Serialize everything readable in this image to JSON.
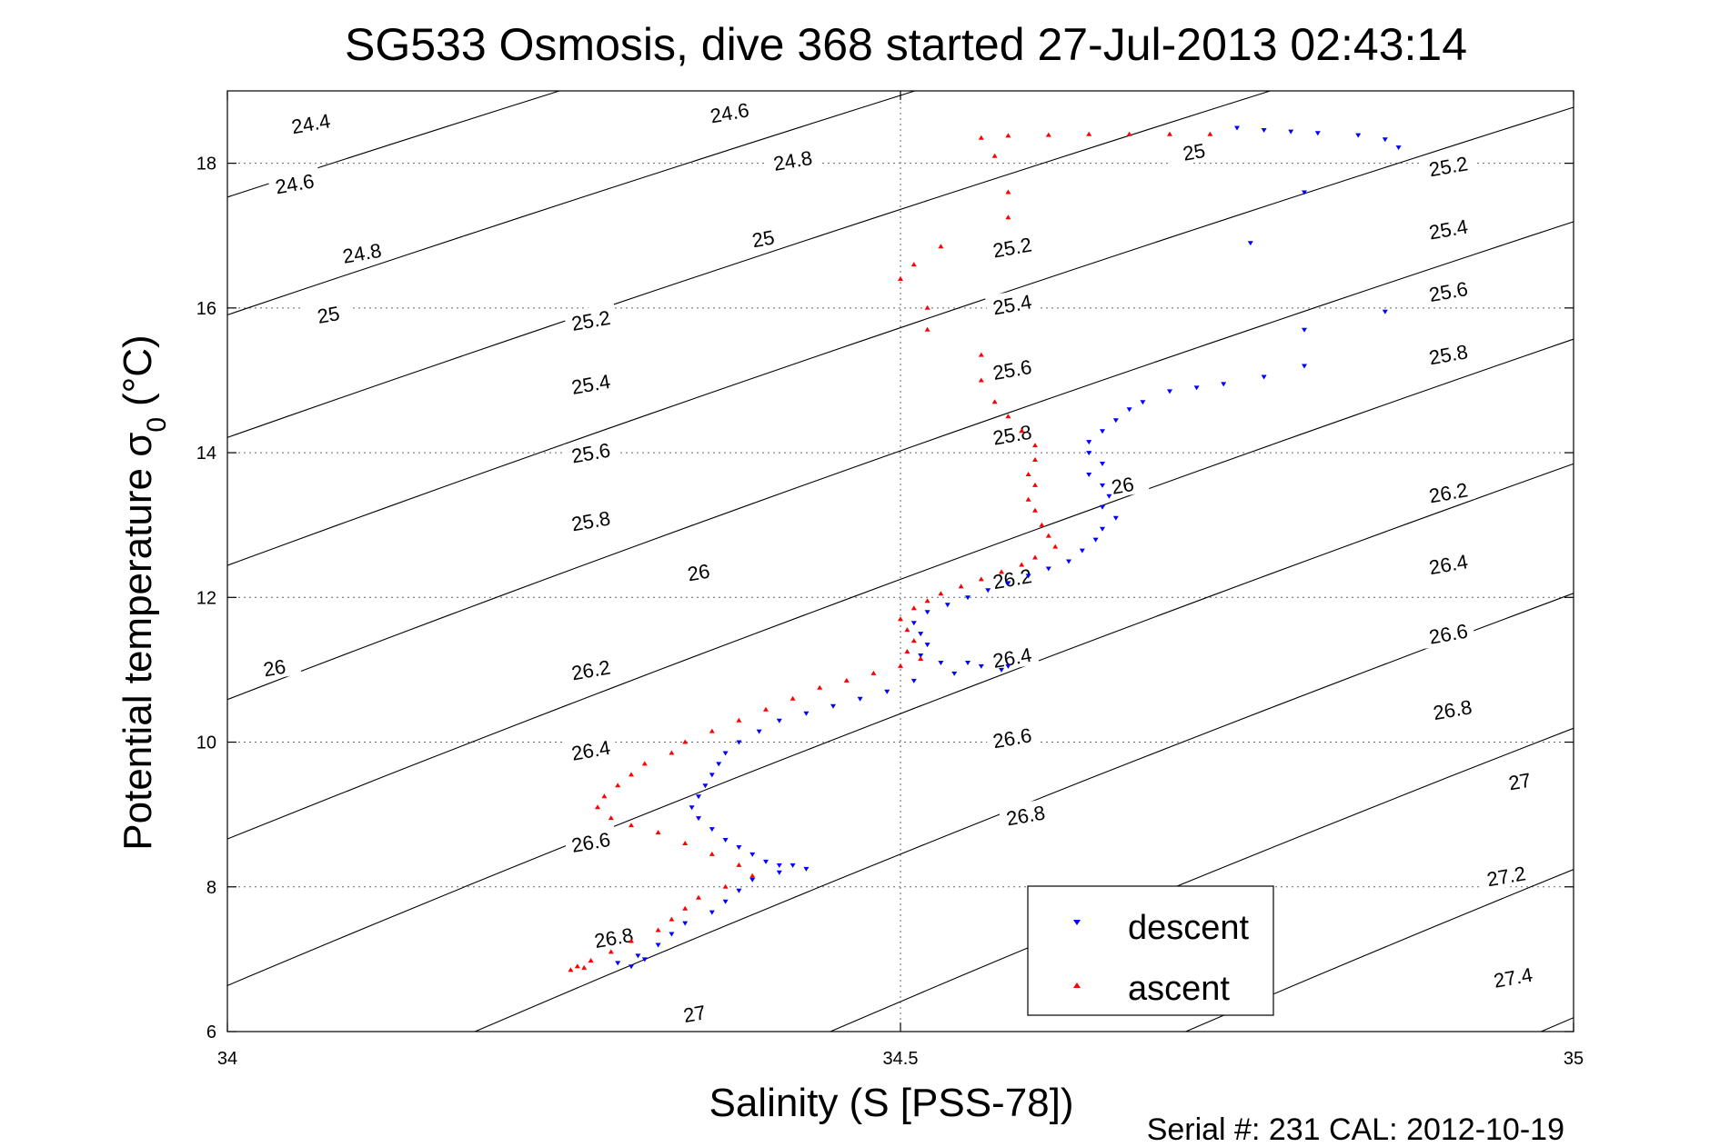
{
  "chart_data": {
    "type": "scatter",
    "title": "SG533 Osmosis, dive 368 started 27-Jul-2013 02:43:14",
    "xlabel": "Salinity (S [PSS-78])",
    "ylabel_main": "Potential temperature σ",
    "ylabel_sub": "0",
    "ylabel_unit": "(°C)",
    "xlim": [
      34,
      35
    ],
    "ylim": [
      6,
      19
    ],
    "xticks": [
      34,
      34.5,
      35
    ],
    "xtick_labels": [
      "34",
      "34.5",
      "35"
    ],
    "yticks": [
      6,
      8,
      10,
      12,
      14,
      16,
      18
    ],
    "ytick_labels": [
      "6",
      "8",
      "10",
      "12",
      "14",
      "16",
      "18"
    ],
    "grid": "dotted at x=34.5 and at y ticks",
    "legend_position": "bottom-center",
    "footer": "Serial #: 231  CAL: 2012-10-19",
    "colors": {
      "descent": "#0000ff",
      "ascent": "#ff0000",
      "contour": "#000000"
    },
    "sigma_contours": {
      "levels": [
        24.4,
        24.6,
        24.8,
        25,
        25.2,
        25.4,
        25.6,
        25.8,
        26,
        26.2,
        26.4,
        26.6,
        26.8,
        27,
        27.2,
        27.4
      ],
      "labels": [
        {
          "text": "24.4",
          "s": 34.062,
          "t": 18.55
        },
        {
          "text": "24.6",
          "s": 34.373,
          "t": 18.7
        },
        {
          "text": "24.6",
          "s": 34.05,
          "t": 17.72
        },
        {
          "text": "24.8",
          "s": 34.42,
          "t": 18.04
        },
        {
          "text": "24.8",
          "s": 34.1,
          "t": 16.76
        },
        {
          "text": "25",
          "s": 34.398,
          "t": 16.96
        },
        {
          "text": "25",
          "s": 34.075,
          "t": 15.91
        },
        {
          "text": "25",
          "s": 34.718,
          "t": 18.16
        },
        {
          "text": "25.2",
          "s": 34.27,
          "t": 15.83
        },
        {
          "text": "25.2",
          "s": 34.583,
          "t": 16.84
        },
        {
          "text": "25.2",
          "s": 34.907,
          "t": 17.96
        },
        {
          "text": "25.4",
          "s": 34.27,
          "t": 14.95
        },
        {
          "text": "25.4",
          "s": 34.583,
          "t": 16.05
        },
        {
          "text": "25.4",
          "s": 34.907,
          "t": 17.09
        },
        {
          "text": "25.6",
          "s": 34.27,
          "t": 14.0
        },
        {
          "text": "25.6",
          "s": 34.583,
          "t": 15.15
        },
        {
          "text": "25.6",
          "s": 34.907,
          "t": 16.23
        },
        {
          "text": "25.8",
          "s": 34.27,
          "t": 13.06
        },
        {
          "text": "25.8",
          "s": 34.583,
          "t": 14.25
        },
        {
          "text": "25.8",
          "s": 34.907,
          "t": 15.36
        },
        {
          "text": "26",
          "s": 34.035,
          "t": 11.03
        },
        {
          "text": "26",
          "s": 34.35,
          "t": 12.35
        },
        {
          "text": "26",
          "s": 34.665,
          "t": 13.55
        },
        {
          "text": "26.2",
          "s": 34.27,
          "t": 11.0
        },
        {
          "text": "26.2",
          "s": 34.583,
          "t": 12.26
        },
        {
          "text": "26.2",
          "s": 34.907,
          "t": 13.45
        },
        {
          "text": "26.4",
          "s": 34.27,
          "t": 9.89
        },
        {
          "text": "26.4",
          "s": 34.583,
          "t": 11.17
        },
        {
          "text": "26.4",
          "s": 34.907,
          "t": 12.46
        },
        {
          "text": "26.6",
          "s": 34.27,
          "t": 8.62
        },
        {
          "text": "26.6",
          "s": 34.583,
          "t": 10.06
        },
        {
          "text": "26.6",
          "s": 34.907,
          "t": 11.5
        },
        {
          "text": "26.8",
          "s": 34.287,
          "t": 7.3
        },
        {
          "text": "26.8",
          "s": 34.593,
          "t": 8.99
        },
        {
          "text": "26.8",
          "s": 34.91,
          "t": 10.45
        },
        {
          "text": "27",
          "s": 34.347,
          "t": 6.25
        },
        {
          "text": "27",
          "s": 34.96,
          "t": 9.46
        },
        {
          "text": "27.2",
          "s": 34.95,
          "t": 8.15
        },
        {
          "text": "27.4",
          "s": 34.955,
          "t": 6.75
        }
      ]
    },
    "series": [
      {
        "name": "descent",
        "marker": "triangle-down",
        "points": [
          [
            34.75,
            18.49
          ],
          [
            34.77,
            18.46
          ],
          [
            34.79,
            18.44
          ],
          [
            34.81,
            18.42
          ],
          [
            34.84,
            18.39
          ],
          [
            34.86,
            18.33
          ],
          [
            34.87,
            18.22
          ],
          [
            34.8,
            17.6
          ],
          [
            34.76,
            16.9
          ],
          [
            34.86,
            15.95
          ],
          [
            34.8,
            15.7
          ],
          [
            34.8,
            15.2
          ],
          [
            34.77,
            15.05
          ],
          [
            34.74,
            14.95
          ],
          [
            34.72,
            14.9
          ],
          [
            34.7,
            14.85
          ],
          [
            34.68,
            14.7
          ],
          [
            34.67,
            14.6
          ],
          [
            34.66,
            14.45
          ],
          [
            34.65,
            14.3
          ],
          [
            34.64,
            14.15
          ],
          [
            34.64,
            14.0
          ],
          [
            34.65,
            13.85
          ],
          [
            34.64,
            13.7
          ],
          [
            34.65,
            13.55
          ],
          [
            34.655,
            13.4
          ],
          [
            34.65,
            13.25
          ],
          [
            34.66,
            13.1
          ],
          [
            34.65,
            12.95
          ],
          [
            34.645,
            12.8
          ],
          [
            34.635,
            12.65
          ],
          [
            34.625,
            12.5
          ],
          [
            34.61,
            12.4
          ],
          [
            34.595,
            12.3
          ],
          [
            34.58,
            12.2
          ],
          [
            34.565,
            12.1
          ],
          [
            34.55,
            12.0
          ],
          [
            34.535,
            11.9
          ],
          [
            34.52,
            11.8
          ],
          [
            34.51,
            11.65
          ],
          [
            34.515,
            11.5
          ],
          [
            34.52,
            11.35
          ],
          [
            34.515,
            11.2
          ],
          [
            34.53,
            11.1
          ],
          [
            34.55,
            11.1
          ],
          [
            34.56,
            11.05
          ],
          [
            34.575,
            11.0
          ],
          [
            34.58,
            11.05
          ],
          [
            34.54,
            10.95
          ],
          [
            34.51,
            10.85
          ],
          [
            34.49,
            10.7
          ],
          [
            34.47,
            10.6
          ],
          [
            34.45,
            10.5
          ],
          [
            34.43,
            10.4
          ],
          [
            34.41,
            10.3
          ],
          [
            34.395,
            10.15
          ],
          [
            34.38,
            10.0
          ],
          [
            34.37,
            9.85
          ],
          [
            34.365,
            9.7
          ],
          [
            34.36,
            9.55
          ],
          [
            34.355,
            9.4
          ],
          [
            34.35,
            9.25
          ],
          [
            34.345,
            9.1
          ],
          [
            34.35,
            8.95
          ],
          [
            34.36,
            8.8
          ],
          [
            34.37,
            8.65
          ],
          [
            34.38,
            8.55
          ],
          [
            34.39,
            8.45
          ],
          [
            34.4,
            8.35
          ],
          [
            34.41,
            8.3
          ],
          [
            34.42,
            8.3
          ],
          [
            34.43,
            8.25
          ],
          [
            34.41,
            8.2
          ],
          [
            34.39,
            8.1
          ],
          [
            34.38,
            7.95
          ],
          [
            34.37,
            7.8
          ],
          [
            34.36,
            7.65
          ],
          [
            34.34,
            7.5
          ],
          [
            34.33,
            7.35
          ],
          [
            34.32,
            7.2
          ],
          [
            34.305,
            7.05
          ],
          [
            34.29,
            6.95
          ],
          [
            34.3,
            6.9
          ],
          [
            34.31,
            7.0
          ]
        ]
      },
      {
        "name": "ascent",
        "marker": "triangle-up",
        "points": [
          [
            34.73,
            18.4
          ],
          [
            34.7,
            18.4
          ],
          [
            34.67,
            18.4
          ],
          [
            34.64,
            18.4
          ],
          [
            34.61,
            18.39
          ],
          [
            34.58,
            18.38
          ],
          [
            34.56,
            18.35
          ],
          [
            34.57,
            18.1
          ],
          [
            34.58,
            17.6
          ],
          [
            34.58,
            17.25
          ],
          [
            34.53,
            16.85
          ],
          [
            34.51,
            16.6
          ],
          [
            34.5,
            16.4
          ],
          [
            34.52,
            16.0
          ],
          [
            34.52,
            15.7
          ],
          [
            34.56,
            15.35
          ],
          [
            34.56,
            15.0
          ],
          [
            34.57,
            14.7
          ],
          [
            34.58,
            14.5
          ],
          [
            34.59,
            14.3
          ],
          [
            34.6,
            14.1
          ],
          [
            34.6,
            13.9
          ],
          [
            34.595,
            13.7
          ],
          [
            34.6,
            13.55
          ],
          [
            34.595,
            13.35
          ],
          [
            34.6,
            13.2
          ],
          [
            34.605,
            13.0
          ],
          [
            34.61,
            12.85
          ],
          [
            34.615,
            12.7
          ],
          [
            34.6,
            12.55
          ],
          [
            34.59,
            12.45
          ],
          [
            34.575,
            12.35
          ],
          [
            34.56,
            12.25
          ],
          [
            34.545,
            12.15
          ],
          [
            34.53,
            12.05
          ],
          [
            34.52,
            11.95
          ],
          [
            34.51,
            11.85
          ],
          [
            34.5,
            11.7
          ],
          [
            34.505,
            11.55
          ],
          [
            34.51,
            11.4
          ],
          [
            34.505,
            11.25
          ],
          [
            34.515,
            11.15
          ],
          [
            34.5,
            11.05
          ],
          [
            34.48,
            10.95
          ],
          [
            34.46,
            10.85
          ],
          [
            34.44,
            10.75
          ],
          [
            34.42,
            10.6
          ],
          [
            34.4,
            10.45
          ],
          [
            34.38,
            10.3
          ],
          [
            34.36,
            10.15
          ],
          [
            34.34,
            10.0
          ],
          [
            34.33,
            9.85
          ],
          [
            34.31,
            9.7
          ],
          [
            34.3,
            9.55
          ],
          [
            34.29,
            9.4
          ],
          [
            34.28,
            9.25
          ],
          [
            34.275,
            9.1
          ],
          [
            34.285,
            8.95
          ],
          [
            34.3,
            8.85
          ],
          [
            34.32,
            8.75
          ],
          [
            34.34,
            8.6
          ],
          [
            34.36,
            8.45
          ],
          [
            34.38,
            8.3
          ],
          [
            34.39,
            8.15
          ],
          [
            34.37,
            8.0
          ],
          [
            34.35,
            7.85
          ],
          [
            34.34,
            7.7
          ],
          [
            34.33,
            7.55
          ],
          [
            34.32,
            7.4
          ],
          [
            34.3,
            7.25
          ],
          [
            34.285,
            7.1
          ],
          [
            34.27,
            6.98
          ],
          [
            34.26,
            6.9
          ],
          [
            34.255,
            6.85
          ],
          [
            34.265,
            6.88
          ]
        ]
      }
    ]
  }
}
